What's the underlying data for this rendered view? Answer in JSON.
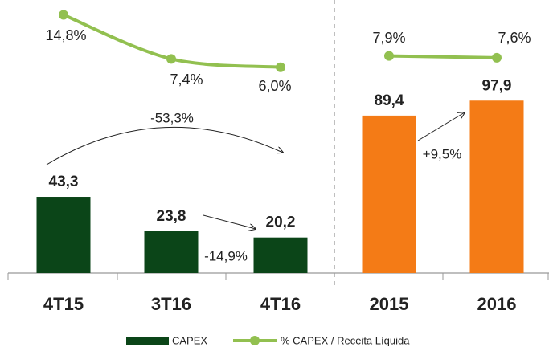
{
  "chart_data": [
    {
      "type": "bar_line",
      "categories": [
        "4T15",
        "3T16",
        "4T16"
      ],
      "ylim": [
        0,
        155
      ],
      "y2lim": [
        -28.6,
        17.3
      ],
      "series": [
        {
          "name": "CAPEX",
          "type": "bar",
          "color": "#0b4518",
          "values": [
            43.3,
            23.8,
            20.2
          ],
          "value_labels": [
            "43,3",
            "23,8",
            "20,2"
          ]
        },
        {
          "name": "% CAPEX / Receita Líquida",
          "type": "line",
          "axis": "y2",
          "color": "#92c050",
          "values": [
            14.8,
            7.4,
            6.0
          ],
          "value_labels": [
            "14,8%",
            "7,4%",
            "6,0%"
          ]
        }
      ],
      "annotations": [
        "-53,3%",
        "-14,9%"
      ]
    },
    {
      "type": "bar_line",
      "categories": [
        "2015",
        "2016"
      ],
      "ylim": [
        0,
        155
      ],
      "y2lim": [
        -28.6,
        17.3
      ],
      "series": [
        {
          "type": "bar",
          "color": "#f47b16",
          "values": [
            89.4,
            97.9
          ],
          "value_labels": [
            "89,4",
            "97,9"
          ]
        },
        {
          "type": "line",
          "axis": "y2",
          "color": "#92c050",
          "values": [
            7.9,
            7.6
          ],
          "value_labels": [
            "7,9%",
            "7,6%"
          ]
        }
      ],
      "annotations": [
        "+9,5%"
      ]
    }
  ]
}
